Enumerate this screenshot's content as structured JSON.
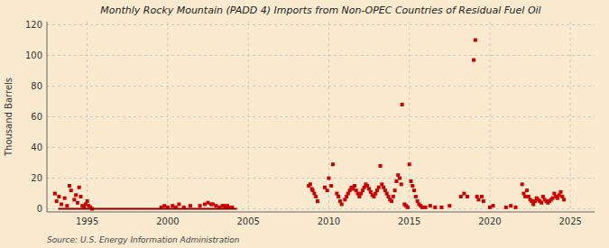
{
  "chart_data": {
    "type": "scatter",
    "title": "Monthly Rocky Mountain (PADD 4) Imports from Non-OPEC Countries of Residual Fuel Oil",
    "ylabel": "Thousand Barrels",
    "source": "Source: U.S. Energy Information Administration",
    "xlim": [
      1992.5,
      2026.5
    ],
    "xticks": [
      1995,
      2000,
      2005,
      2010,
      2015,
      2020,
      2025
    ],
    "ylim": [
      -2,
      122
    ],
    "yticks": [
      0,
      20,
      40,
      60,
      80,
      100,
      120
    ],
    "grid": true,
    "series": [
      {
        "type": "scatter",
        "marker": "square",
        "color": "#cc0000",
        "x": [
          1993.0,
          1993.1,
          1993.25,
          1993.4,
          1993.6,
          1993.75,
          1993.9,
          1994.0,
          1994.2,
          1994.3,
          1994.4,
          1994.5,
          1994.6,
          1994.7,
          1994.8,
          1994.9,
          1995.0,
          1995.1,
          1995.2,
          1995.3,
          1999.6,
          1999.8,
          2000.0,
          2000.3,
          2000.5,
          2000.7,
          2001.0,
          2001.4,
          2002.0,
          2002.3,
          2002.5,
          2002.7,
          2002.8,
          2003.0,
          2003.2,
          2003.4,
          2003.5,
          2003.6,
          2003.7,
          2003.8,
          2004.0,
          2008.75,
          2008.85,
          2008.95,
          2009.0,
          2009.1,
          2009.2,
          2009.3,
          2009.75,
          2009.9,
          2010.0,
          2010.15,
          2010.25,
          2010.5,
          2010.6,
          2010.7,
          2010.8,
          2011.0,
          2011.1,
          2011.2,
          2011.3,
          2011.4,
          2011.5,
          2011.6,
          2011.7,
          2011.8,
          2011.9,
          2012.0,
          2012.1,
          2012.2,
          2012.3,
          2012.4,
          2012.5,
          2012.6,
          2012.7,
          2012.8,
          2012.9,
          2013.0,
          2013.1,
          2013.2,
          2013.3,
          2013.4,
          2013.5,
          2013.6,
          2013.7,
          2013.8,
          2013.9,
          2014.0,
          2014.1,
          2014.2,
          2014.3,
          2014.4,
          2014.5,
          2014.55,
          2014.7,
          2014.8,
          2014.9,
          2015.0,
          2015.1,
          2015.2,
          2015.3,
          2015.4,
          2015.5,
          2015.6,
          2015.7,
          2015.8,
          2016.0,
          2016.3,
          2016.6,
          2017.0,
          2017.5,
          2018.2,
          2018.4,
          2018.6,
          2019.0,
          2019.1,
          2019.2,
          2019.3,
          2019.5,
          2019.6,
          2020.0,
          2020.2,
          2021.0,
          2021.3,
          2021.6,
          2022.0,
          2022.1,
          2022.2,
          2022.3,
          2022.4,
          2022.5,
          2022.6,
          2022.7,
          2022.8,
          2022.9,
          2023.0,
          2023.1,
          2023.2,
          2023.3,
          2023.4,
          2023.5,
          2023.6,
          2023.7,
          2023.8,
          2023.9,
          2024.0,
          2024.1,
          2024.2,
          2024.3,
          2024.4,
          2024.5,
          2024.6
        ],
        "values": [
          10,
          5,
          8,
          3,
          7,
          2,
          15,
          12,
          6,
          9,
          4,
          14,
          8,
          2,
          1,
          3,
          5,
          2,
          1,
          0,
          1,
          2,
          1,
          2,
          1,
          3,
          1,
          2,
          2,
          3,
          4,
          3,
          3,
          2,
          1,
          2,
          2,
          1,
          2,
          1,
          1,
          15,
          16,
          13,
          12,
          10,
          8,
          5,
          14,
          12,
          20,
          15,
          29,
          10,
          8,
          5,
          3,
          6,
          8,
          10,
          12,
          14,
          13,
          15,
          12,
          10,
          8,
          10,
          12,
          14,
          16,
          15,
          13,
          11,
          9,
          8,
          10,
          12,
          14,
          28,
          16,
          14,
          12,
          10,
          8,
          6,
          5,
          8,
          12,
          18,
          22,
          20,
          16,
          68,
          3,
          2,
          1,
          29,
          18,
          15,
          12,
          8,
          5,
          3,
          2,
          1,
          1,
          2,
          1,
          1,
          2,
          8,
          10,
          8,
          97,
          110,
          8,
          6,
          8,
          5,
          1,
          2,
          1,
          2,
          1,
          16,
          10,
          8,
          12,
          8,
          6,
          5,
          3,
          5,
          7,
          6,
          5,
          4,
          8,
          6,
          5,
          4,
          5,
          6,
          7,
          10,
          8,
          7,
          9,
          11,
          8,
          6
        ]
      },
      {
        "type": "line",
        "color": "#8b0000",
        "x": [
          1993.2,
          2004.3
        ],
        "values": [
          0,
          0
        ]
      }
    ]
  }
}
